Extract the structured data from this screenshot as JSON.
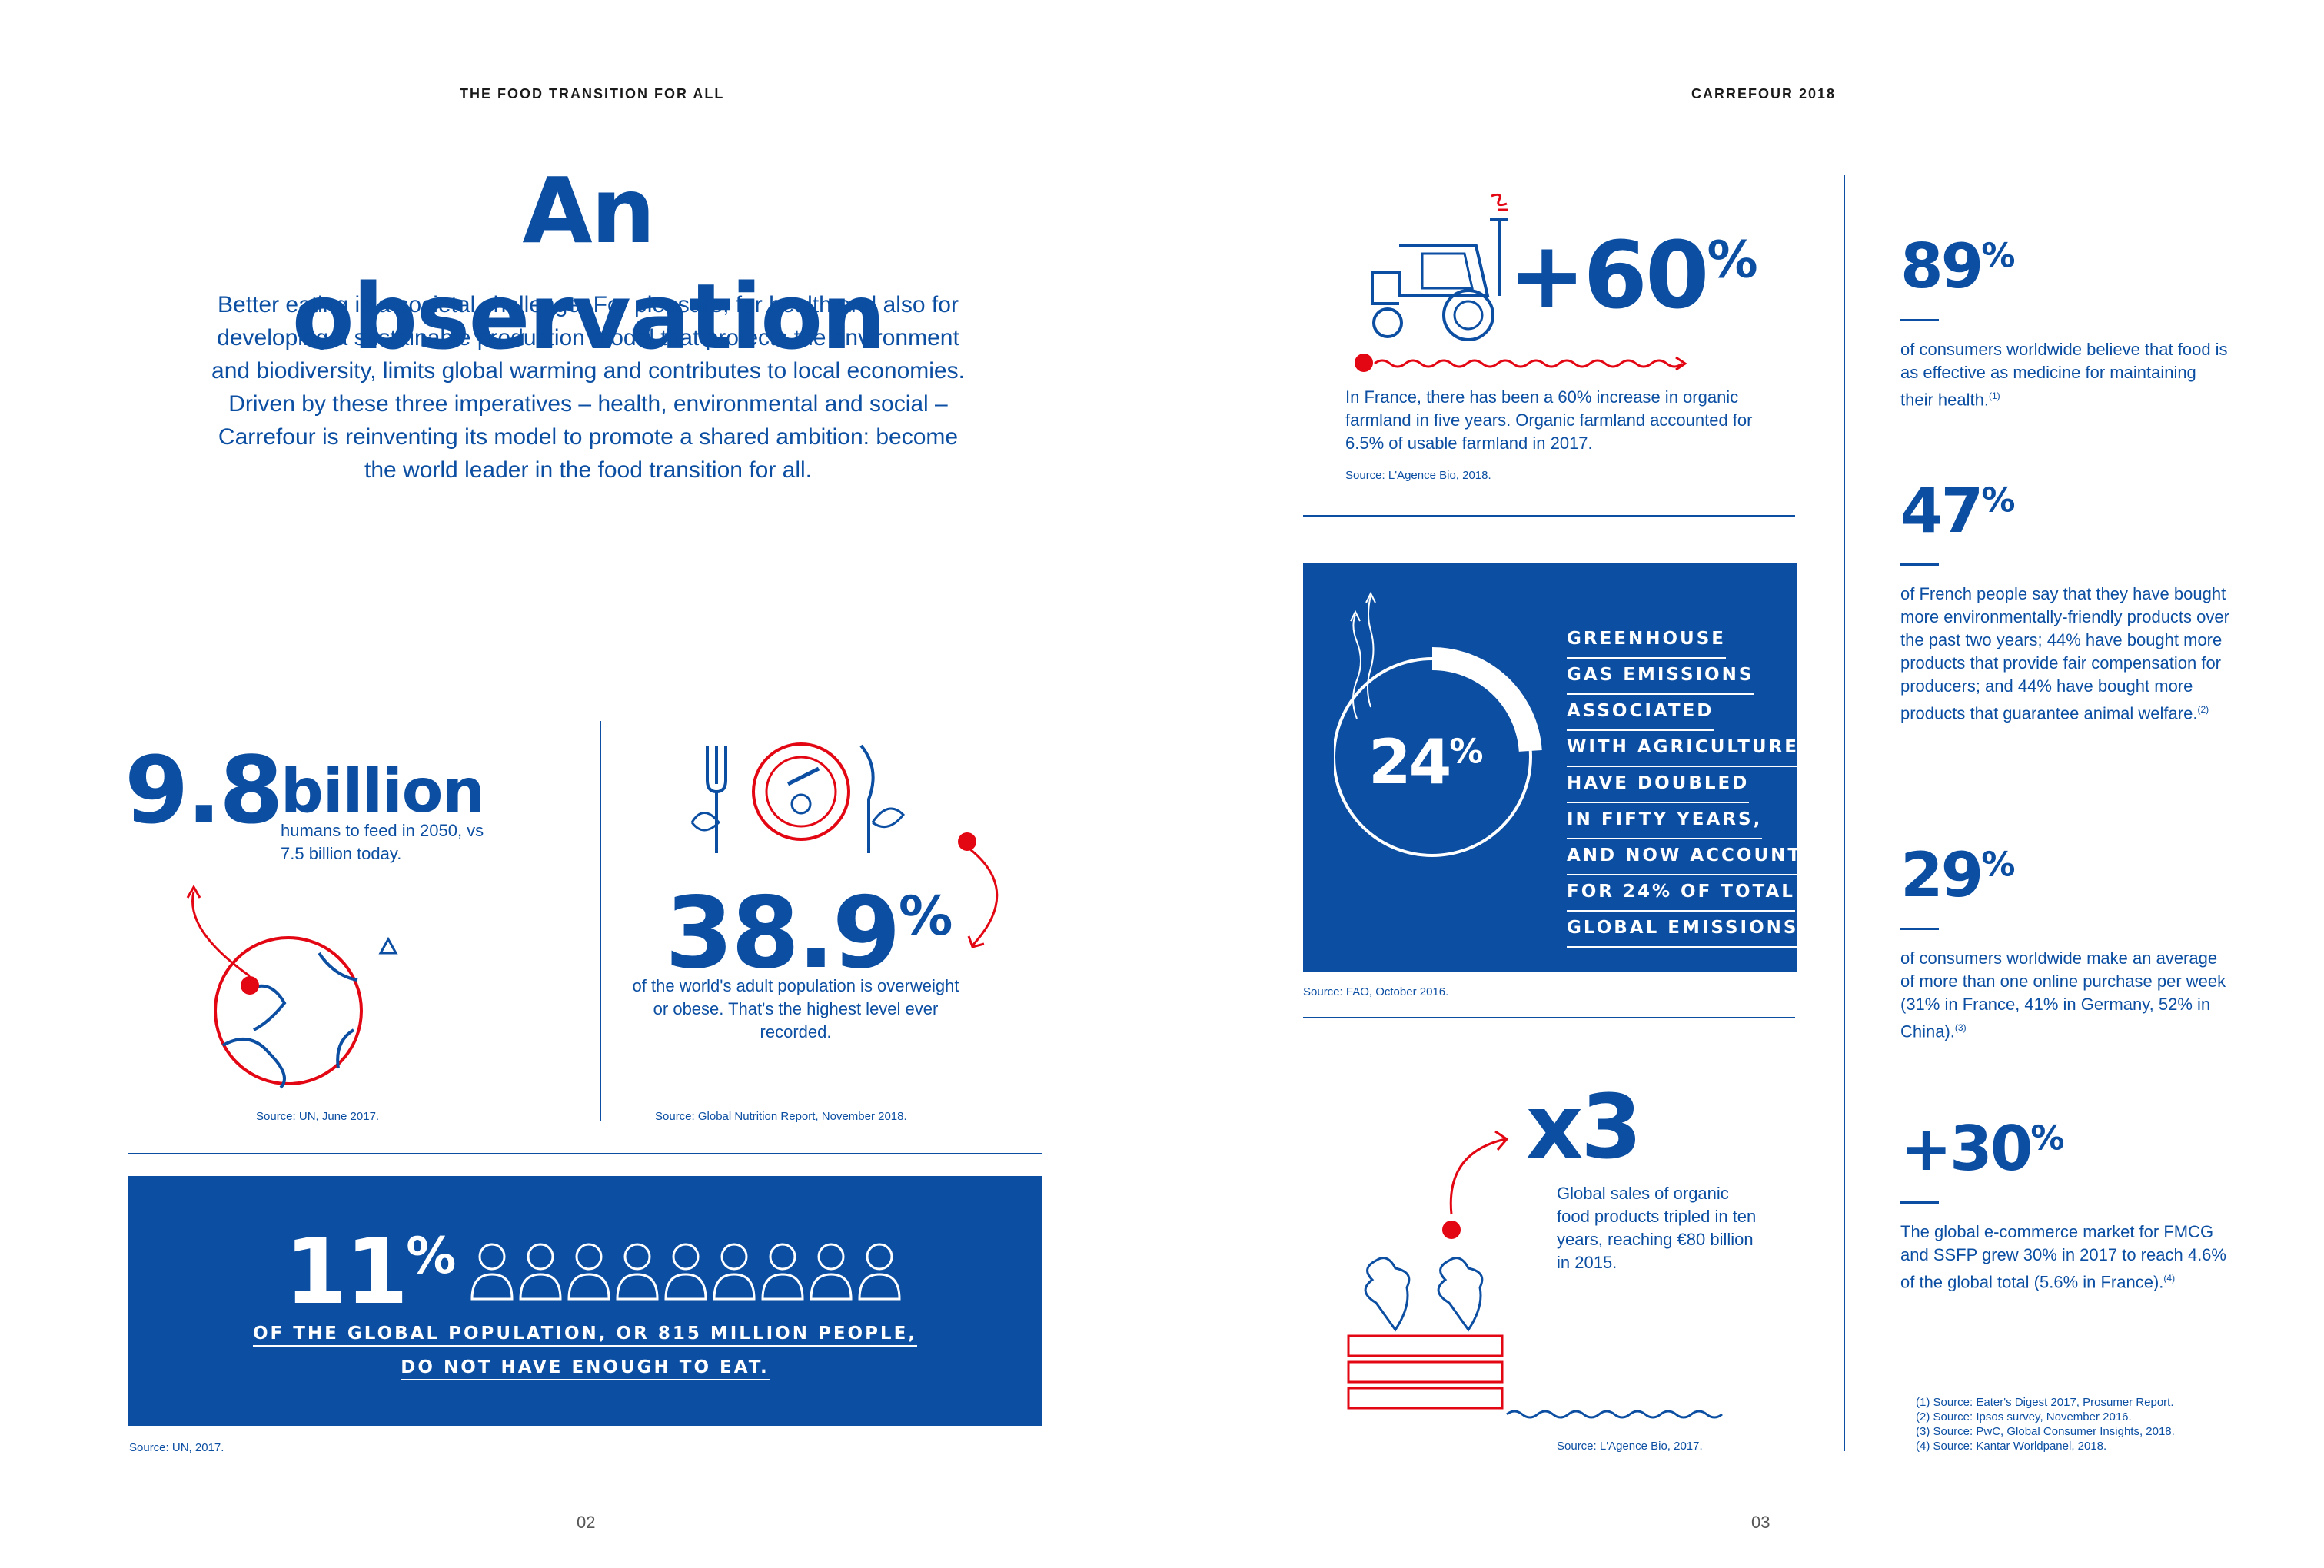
{
  "header": {
    "left": "THE FOOD TRANSITION FOR ALL",
    "right": "CARREFOUR 2018"
  },
  "title": "An observation",
  "intro": "Better eating is a societal challenge. For pleasure, for health and also for developing a sustainable production model that protects the environment and biodiversity, limits global warming and contributes to local economies. Driven by these three imperatives – health, environmental and social – Carrefour is reinventing its model to promote a shared ambition: become the world leader in the food transition for all.",
  "population": {
    "value": "9.8",
    "unit": "billion",
    "text": "humans to feed in 2050, vs 7.5 billion today.",
    "source": "Source: UN, June 2017."
  },
  "obesity": {
    "value": "38.9",
    "pct": "%",
    "text": "of the world's adult population is overweight or obese. That's the highest level ever recorded.",
    "source": "Source: Global Nutrition Report, November 2018."
  },
  "hunger": {
    "value": "11",
    "pct": "%",
    "line1": "OF THE GLOBAL POPULATION, OR 815 MILLION PEOPLE,",
    "line2": "DO NOT HAVE ENOUGH TO EAT.",
    "source": "Source: UN, 2017."
  },
  "organic_farmland": {
    "value": "+60",
    "pct": "%",
    "text": "In France, there has been a 60% increase in organic farmland in five years. Organic farmland accounted for 6.5% of usable farmland in 2017.",
    "source": "Source: L'Agence Bio, 2018."
  },
  "emissions": {
    "value": "24",
    "pct": "%",
    "lines": [
      "GREENHOUSE",
      "GAS EMISSIONS",
      "ASSOCIATED",
      "WITH AGRICULTURE",
      "HAVE DOUBLED",
      "IN FIFTY YEARS,",
      "AND NOW ACCOUNT",
      "FOR 24% OF TOTAL",
      "GLOBAL EMISSIONS."
    ],
    "source": "Source: FAO, October 2016.",
    "share": 0.24
  },
  "organic_sales": {
    "value": "x3",
    "text": "Global sales of organic food products tripled in ten years, reaching €80 billion in 2015.",
    "source": "Source: L'Agence Bio, 2017."
  },
  "stats": [
    {
      "value": "89",
      "pct": "%",
      "text": "of consumers worldwide believe that food is as effective as medicine for maintaining their health.",
      "note": "(1)"
    },
    {
      "value": "47",
      "pct": "%",
      "text": "of French people say that they have bought more environmentally-friendly products over the past two years; 44% have bought more products that provide fair compensation for producers; and 44% have bought more products that guarantee animal welfare.",
      "note": "(2)"
    },
    {
      "value": "29",
      "pct": "%",
      "text": "of consumers worldwide make an average of more than one online purchase per week (31% in France, 41% in Germany, 52% in China).",
      "note": "(3)"
    },
    {
      "value": "+30",
      "pct": "%",
      "text": "The global e-commerce market for FMCG and SSFP grew 30% in 2017 to reach 4.6% of the global total (5.6% in France).",
      "note": "(4)"
    }
  ],
  "footnotes": [
    "(1) Source: Eater's Digest 2017, Prosumer Report.",
    "(2) Source: Ipsos survey, November 2016.",
    "(3) Source: PwC, Global Consumer Insights, 2018.",
    "(4) Source: Kantar Worldpanel, 2018."
  ],
  "pages": {
    "left": "02",
    "right": "03"
  },
  "colors": {
    "brand_blue": "#0b4ea2",
    "accent_red": "#e30613"
  }
}
